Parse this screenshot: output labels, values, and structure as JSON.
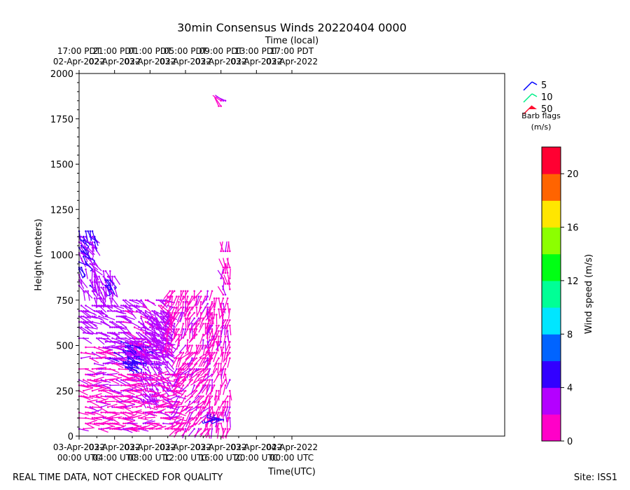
{
  "chart_data": {
    "type": "scatter",
    "title": "30min Consensus Winds 20220404 0000",
    "xlabel_bottom": "Time(UTC)",
    "xlabel_top": "Time (local)",
    "ylabel": "Height (meters)",
    "xlim_hours": [
      0,
      48
    ],
    "ylim": [
      0,
      2000
    ],
    "yticks": [
      "0",
      "250",
      "500",
      "750",
      "1000",
      "1250",
      "1500",
      "1750",
      "2000"
    ],
    "bottom_ticks": [
      {
        "l1": "03-Apr-2022",
        "l2": "00:00 UTC",
        "h": 0
      },
      {
        "l1": "03-Apr-2022",
        "l2": "04:00 UTC",
        "h": 4
      },
      {
        "l1": "03-Apr-2022",
        "l2": "08:00 UTC",
        "h": 8
      },
      {
        "l1": "03-Apr-2022",
        "l2": "12:00 UTC",
        "h": 12
      },
      {
        "l1": "03-Apr-2022",
        "l2": "16:00 UTC",
        "h": 16
      },
      {
        "l1": "03-Apr-2022",
        "l2": "20:00 UTC",
        "h": 20
      },
      {
        "l1": "04-Apr-2022",
        "l2": "00:00 UTC",
        "h": 24
      }
    ],
    "top_ticks": [
      {
        "l1": "17:00 PDT",
        "l2": "02-Apr-2022"
      },
      {
        "l1": "21:00 PDT",
        "l2": "02-Apr-2022"
      },
      {
        "l1": "01:00 PDT",
        "l2": "03-Apr-2022"
      },
      {
        "l1": "05:00 PDT",
        "l2": "03-Apr-2022"
      },
      {
        "l1": "09:00 PDT",
        "l2": "03-Apr-2022"
      },
      {
        "l1": "13:00 PDT",
        "l2": "03-Apr-2022"
      },
      {
        "l1": "17:00 PDT",
        "l2": "03-Apr-2022"
      }
    ],
    "barb_legend": {
      "items": [
        {
          "label": "5",
          "color": "#0000ff"
        },
        {
          "label": "10",
          "color": "#00ee88"
        },
        {
          "label": "50",
          "color": "#ff1030"
        }
      ],
      "title_line1": "Barb flags",
      "title_line2": "(m/s)"
    },
    "colorbar": {
      "label": "Wind speed (m/s)",
      "min": 0,
      "max": 22,
      "ticks": [
        "0",
        "4",
        "8",
        "12",
        "16",
        "20"
      ],
      "colors": [
        "#ff00c8",
        "#b400ff",
        "#3200ff",
        "#0064ff",
        "#00e6ff",
        "#00ff96",
        "#00ff14",
        "#8cff00",
        "#ffe600",
        "#ff6400",
        "#ff0032"
      ]
    },
    "wind_rows": [
      {
        "t0": 0.0,
        "t1": 1.8,
        "h0": 800,
        "h1": 1140,
        "dir": 150,
        "speed": 3.5
      },
      {
        "t0": 0.0,
        "t1": 0.8,
        "h0": 930,
        "h1": 1100,
        "dir": 135,
        "speed": 5.0
      },
      {
        "t0": 1.5,
        "t1": 4.0,
        "h0": 760,
        "h1": 920,
        "dir": 160,
        "speed": 3.0
      },
      {
        "t0": 3.0,
        "t1": 4.0,
        "h0": 800,
        "h1": 880,
        "dir": 145,
        "speed": 4.6
      },
      {
        "t0": 0.0,
        "t1": 5.0,
        "h0": 540,
        "h1": 740,
        "dir": 110,
        "speed": 3.0
      },
      {
        "t0": 0.0,
        "t1": 6.0,
        "h0": 40,
        "h1": 500,
        "dir": 95,
        "speed": 1.5
      },
      {
        "t0": 3.0,
        "t1": 9.0,
        "h0": 400,
        "h1": 520,
        "dir": 95,
        "speed": 3.5
      },
      {
        "t0": 5.0,
        "t1": 6.5,
        "h0": 380,
        "h1": 500,
        "dir": 120,
        "speed": 5.0
      },
      {
        "t0": 5.0,
        "t1": 10.0,
        "h0": 450,
        "h1": 770,
        "dir": 120,
        "speed": 2.5
      },
      {
        "t0": 7.0,
        "t1": 10.0,
        "h0": 200,
        "h1": 700,
        "dir": 140,
        "speed": 3.2
      },
      {
        "t0": 5.0,
        "t1": 11.0,
        "h0": 40,
        "h1": 350,
        "dir": 90,
        "speed": 1.5
      },
      {
        "t0": 10.0,
        "t1": 15.0,
        "h0": 500,
        "h1": 810,
        "dir": 200,
        "speed": 1.5
      },
      {
        "t0": 11.0,
        "t1": 15.0,
        "h0": 40,
        "h1": 480,
        "dir": 220,
        "speed": 1.5
      },
      {
        "t0": 14.5,
        "t1": 17.0,
        "h0": 40,
        "h1": 780,
        "dir": 190,
        "speed": 1.5
      },
      {
        "t0": 16.0,
        "t1": 17.0,
        "h0": 780,
        "h1": 1020,
        "dir": 350,
        "speed": 1.8
      },
      {
        "t0": 15.0,
        "t1": 16.5,
        "h0": 90,
        "h1": 110,
        "dir": 270,
        "speed": 5.0
      },
      {
        "t0": 15.5,
        "t1": 16.5,
        "h0": 1820,
        "h1": 1860,
        "dir": 315,
        "speed": 1.5
      }
    ]
  },
  "footer": {
    "left": "REAL TIME DATA, NOT CHECKED FOR QUALITY",
    "right": "Site: ISS1"
  }
}
